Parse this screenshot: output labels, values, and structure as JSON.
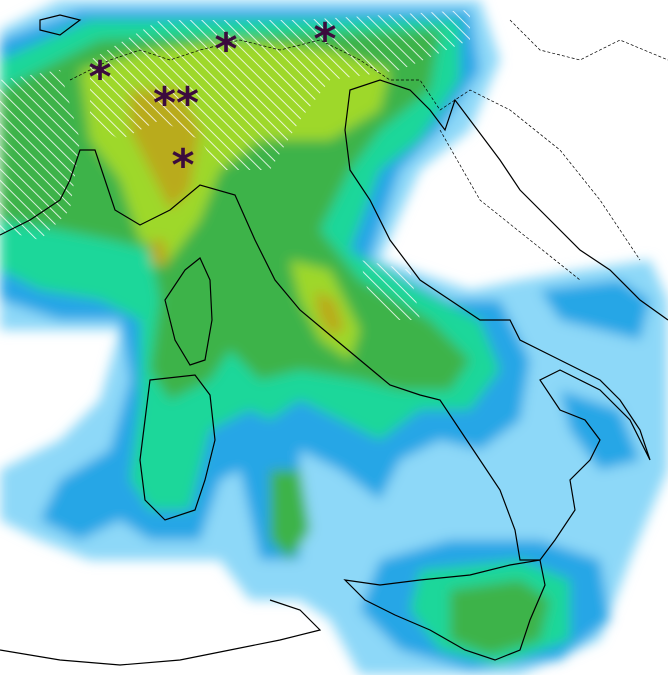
{
  "snow_markers": [
    {
      "label": "*"
    },
    {
      "label": "*"
    },
    {
      "label": "*"
    },
    {
      "label": "**"
    },
    {
      "label": "*"
    }
  ]
}
